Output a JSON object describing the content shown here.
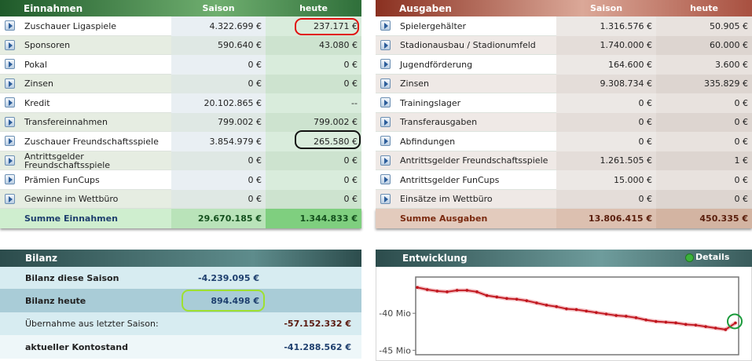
{
  "einnahmen": {
    "title": "Einnahmen",
    "col_saison": "Saison",
    "col_heute": "heute",
    "rows": [
      [
        "Zuschauer Ligaspiele",
        "4.322.699 €",
        "237.171 €"
      ],
      [
        "Sponsoren",
        "590.640 €",
        "43.080 €"
      ],
      [
        "Pokal",
        "0 €",
        "0 €"
      ],
      [
        "Zinsen",
        "0 €",
        "0 €"
      ],
      [
        "Kredit",
        "20.102.865 €",
        "--"
      ],
      [
        "Transfereinnahmen",
        "799.002 €",
        "799.002 €"
      ],
      [
        "Zuschauer Freundschaftsspiele",
        "3.854.979 €",
        "265.580 €"
      ],
      [
        "Antrittsgelder Freundschaftsspiele",
        "0 €",
        "0 €"
      ],
      [
        "Prämien FunCups",
        "0 €",
        "0 €"
      ],
      [
        "Gewinne im Wettbüro",
        "0 €",
        "0 €"
      ]
    ],
    "sum": [
      "Summe Einnahmen",
      "29.670.185 €",
      "1.344.833 €"
    ]
  },
  "ausgaben": {
    "title": "Ausgaben",
    "col_saison": "Saison",
    "col_heute": "heute",
    "rows": [
      [
        "Spielergehälter",
        "1.316.576 €",
        "50.905 €"
      ],
      [
        "Stadionausbau / Stadionumfeld",
        "1.740.000 €",
        "60.000 €"
      ],
      [
        "Jugendförderung",
        "164.600 €",
        "3.600 €"
      ],
      [
        "Zinsen",
        "9.308.734 €",
        "335.829 €"
      ],
      [
        "Trainingslager",
        "0 €",
        "0 €"
      ],
      [
        "Transferausgaben",
        "0 €",
        "0 €"
      ],
      [
        "Abfindungen",
        "0 €",
        "0 €"
      ],
      [
        "Antrittsgelder Freundschaftsspiele",
        "1.261.505 €",
        "1 €"
      ],
      [
        "Antrittsgelder FunCups",
        "15.000 €",
        "0 €"
      ],
      [
        "Einsätze im Wettbüro",
        "0 €",
        "0 €"
      ]
    ],
    "sum": [
      "Summe Ausgaben",
      "13.806.415 €",
      "450.335 €"
    ]
  },
  "bilanz": {
    "title": "Bilanz",
    "rows": [
      {
        "label": "Bilanz diese Saison",
        "saison": "-4.239.095 €"
      },
      {
        "label": "Bilanz heute",
        "saison": "894.498 €"
      },
      {
        "label": "Übernahme aus letzter Saison:",
        "gesamt": "-57.152.332 €"
      },
      {
        "label": "aktueller Kontostand",
        "gesamt": "-41.288.562 €"
      }
    ]
  },
  "entwicklung": {
    "title": "Entwicklung",
    "details": "Details",
    "chart_data": {
      "type": "line",
      "color": "#c0141c",
      "values": [
        -36.5,
        -36.8,
        -37.0,
        -37.1,
        -36.9,
        -36.9,
        -37.1,
        -37.6,
        -37.8,
        -38.0,
        -38.1,
        -38.3,
        -38.6,
        -38.9,
        -39.1,
        -39.4,
        -39.5,
        -39.7,
        -39.9,
        -40.1,
        -40.3,
        -40.4,
        -40.6,
        -40.9,
        -41.1,
        -41.2,
        -41.3,
        -41.5,
        -41.6,
        -41.8,
        -42.0,
        -42.2,
        -41.3
      ],
      "ylim": [
        -45.6,
        -35.1
      ],
      "yticks": [
        {
          "value": -40,
          "label": "-40 Mio"
        },
        {
          "value": -45,
          "label": "-45 Mio"
        }
      ]
    }
  }
}
